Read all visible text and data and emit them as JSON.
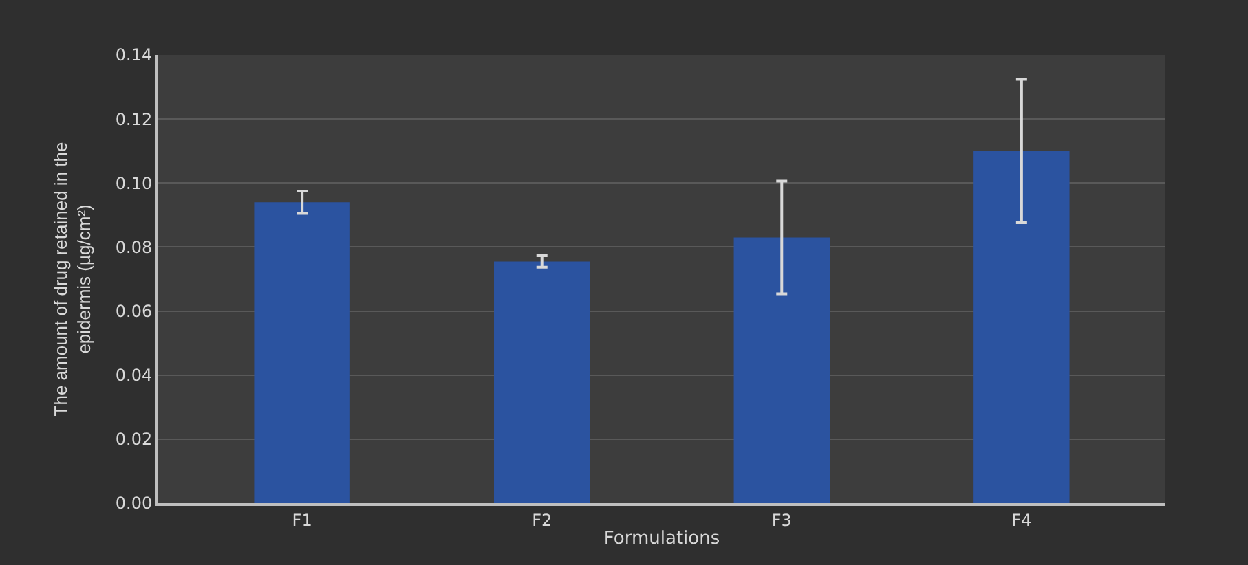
{
  "chart_data": {
    "type": "bar",
    "xlabel": "Formulations",
    "ylabel": "The amount of drug retained in the epidermis (µg/cm²)",
    "categories": [
      "F1",
      "F2",
      "F3",
      "F4"
    ],
    "values": [
      0.094,
      0.0755,
      0.083,
      0.11
    ],
    "errors": [
      0.0035,
      0.0018,
      0.0176,
      0.0224
    ],
    "color": "#2b53a0",
    "ylim": [
      0,
      0.14
    ],
    "yticks": [
      {
        "value": 0,
        "label": "0.00"
      },
      {
        "value": 0.02,
        "label": "0.02"
      },
      {
        "value": 0.04,
        "label": "0.04"
      },
      {
        "value": 0.06,
        "label": "0.06"
      },
      {
        "value": 0.08,
        "label": "0.08"
      },
      {
        "value": 0.1,
        "label": "0.10"
      },
      {
        "value": 0.12,
        "label": "0.12"
      },
      {
        "value": 0.14,
        "label": "0.14"
      }
    ],
    "grid": "y",
    "legend": false
  }
}
